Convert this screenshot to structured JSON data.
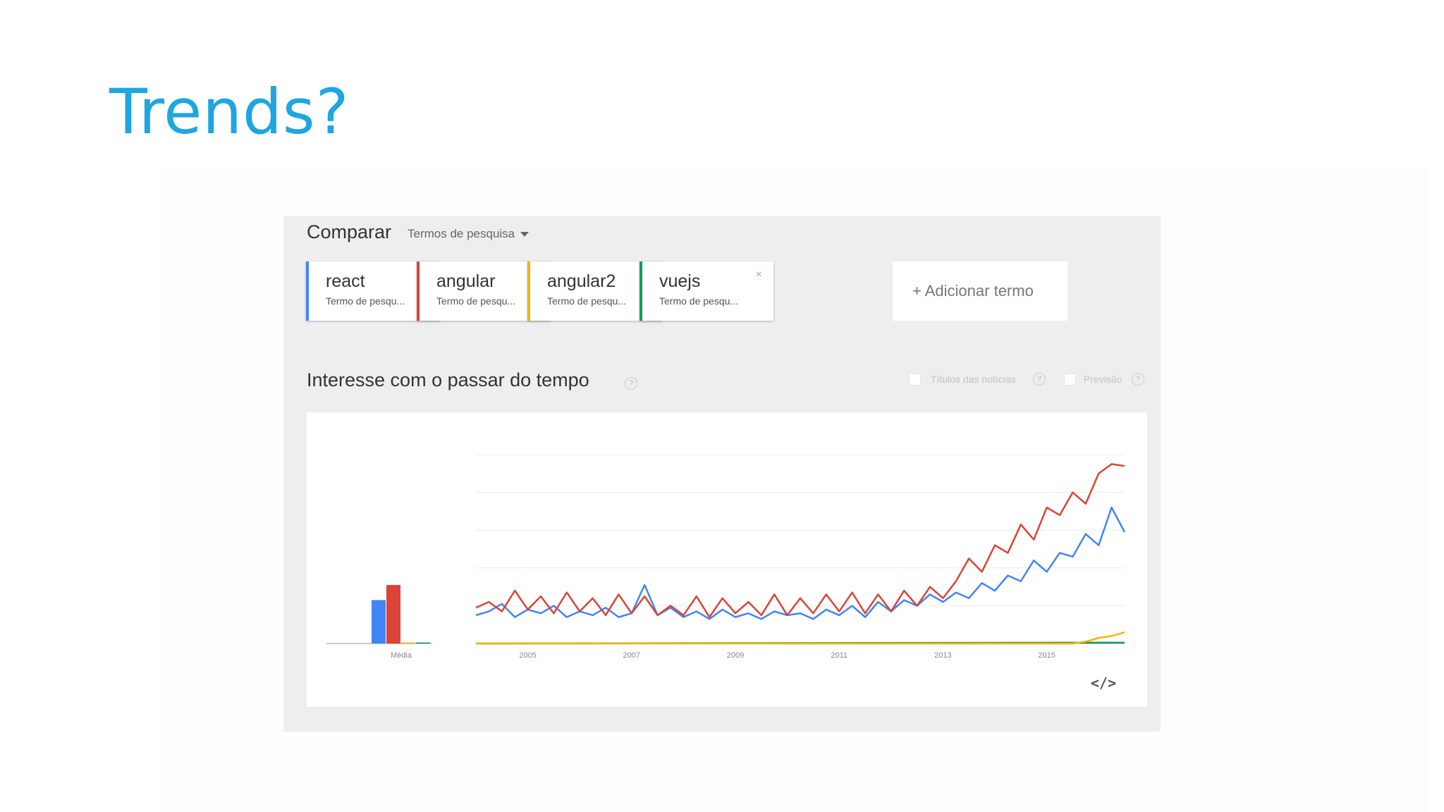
{
  "slide": {
    "title": "Trends?"
  },
  "compare": {
    "title": "Comparar",
    "select_label": "Termos de pesquisa"
  },
  "terms": [
    {
      "name": "react",
      "sub": "Termo de pesqu...",
      "color": "#4285f4",
      "close": "×"
    },
    {
      "name": "angular",
      "sub": "Termo de pesqu...",
      "color": "#db4437",
      "close": ""
    },
    {
      "name": "angular2",
      "sub": "Termo de pesqu...",
      "color": "#f4b400",
      "close": ""
    },
    {
      "name": "vuejs",
      "sub": "Termo de pesqu...",
      "color": "#0f9d58",
      "close": "×"
    }
  ],
  "add_term": "+ Adicionar termo",
  "interest": {
    "title": "Interesse com o passar do tempo",
    "help": "?",
    "news_label": "Títulos das notícias",
    "forecast_label": "Previsão",
    "embed": "</>"
  },
  "chart_data": {
    "type": "line",
    "x_ticks": [
      "2005",
      "2007",
      "2009",
      "2011",
      "2013",
      "2015"
    ],
    "x_range": [
      2004.0,
      2016.5
    ],
    "ylim": [
      0,
      100
    ],
    "grid": true,
    "average_label": "Média",
    "averages": [
      {
        "name": "react",
        "value": 23,
        "color": "#4285f4"
      },
      {
        "name": "angular",
        "value": 31,
        "color": "#db4437"
      },
      {
        "name": "angular2",
        "value": 0.5,
        "color": "#f4b400"
      },
      {
        "name": "vuejs",
        "value": 0.3,
        "color": "#0f9d58"
      }
    ],
    "series": [
      {
        "name": "angular",
        "color": "#db4437",
        "x": [
          2004.0,
          2004.25,
          2004.5,
          2004.75,
          2005.0,
          2005.25,
          2005.5,
          2005.75,
          2006.0,
          2006.25,
          2006.5,
          2006.75,
          2007.0,
          2007.25,
          2007.5,
          2007.75,
          2008.0,
          2008.25,
          2008.5,
          2008.75,
          2009.0,
          2009.25,
          2009.5,
          2009.75,
          2010.0,
          2010.25,
          2010.5,
          2010.75,
          2011.0,
          2011.25,
          2011.5,
          2011.75,
          2012.0,
          2012.25,
          2012.5,
          2012.75,
          2013.0,
          2013.25,
          2013.5,
          2013.75,
          2014.0,
          2014.25,
          2014.5,
          2014.75,
          2015.0,
          2015.25,
          2015.5,
          2015.75,
          2016.0,
          2016.25,
          2016.5
        ],
        "values": [
          19,
          22,
          17,
          28,
          18,
          25,
          16,
          27,
          17,
          24,
          15,
          26,
          16,
          25,
          15,
          20,
          15,
          25,
          14,
          24,
          16,
          22,
          15,
          26,
          15,
          24,
          16,
          26,
          17,
          27,
          16,
          26,
          17,
          28,
          20,
          30,
          24,
          33,
          45,
          38,
          52,
          48,
          63,
          55,
          72,
          68,
          80,
          74,
          90,
          95,
          94
        ]
      },
      {
        "name": "react",
        "color": "#4285f4",
        "x": [
          2004.0,
          2004.25,
          2004.5,
          2004.75,
          2005.0,
          2005.25,
          2005.5,
          2005.75,
          2006.0,
          2006.25,
          2006.5,
          2006.75,
          2007.0,
          2007.25,
          2007.5,
          2007.75,
          2008.0,
          2008.25,
          2008.5,
          2008.75,
          2009.0,
          2009.25,
          2009.5,
          2009.75,
          2010.0,
          2010.25,
          2010.5,
          2010.75,
          2011.0,
          2011.25,
          2011.5,
          2011.75,
          2012.0,
          2012.25,
          2012.5,
          2012.75,
          2013.0,
          2013.25,
          2013.5,
          2013.75,
          2014.0,
          2014.25,
          2014.5,
          2014.75,
          2015.0,
          2015.25,
          2015.5,
          2015.75,
          2016.0,
          2016.25,
          2016.5
        ],
        "values": [
          15,
          17,
          21,
          14,
          18,
          16,
          20,
          14,
          17,
          15,
          19,
          14,
          16,
          31,
          15,
          19,
          14,
          17,
          13,
          18,
          14,
          16,
          13,
          17,
          15,
          16,
          13,
          18,
          15,
          20,
          14,
          22,
          17,
          23,
          20,
          26,
          22,
          27,
          24,
          32,
          28,
          36,
          33,
          44,
          38,
          48,
          46,
          58,
          52,
          72,
          59
        ]
      },
      {
        "name": "angular2",
        "color": "#f4b400",
        "x": [
          2004.0,
          2015.5,
          2015.75,
          2016.0,
          2016.25,
          2016.5
        ],
        "values": [
          0,
          0,
          1,
          3,
          4,
          6
        ]
      },
      {
        "name": "vuejs",
        "color": "#0f9d58",
        "x": [
          2004.0,
          2016.5
        ],
        "values": [
          0,
          0.5
        ]
      }
    ]
  }
}
